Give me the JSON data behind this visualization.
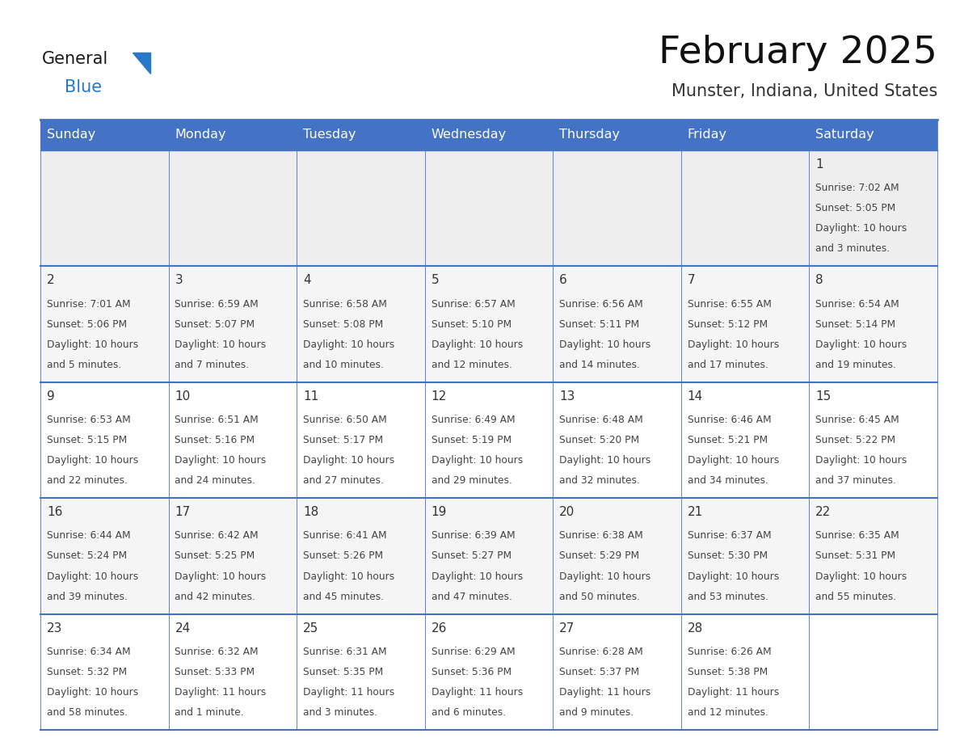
{
  "title": "February 2025",
  "subtitle": "Munster, Indiana, United States",
  "header_bg": "#4472C4",
  "header_text_color": "#FFFFFF",
  "day_names": [
    "Sunday",
    "Monday",
    "Tuesday",
    "Wednesday",
    "Thursday",
    "Friday",
    "Saturday"
  ],
  "cell_bg_row0": "#EEEEEE",
  "cell_bg_row1": "#F5F5F5",
  "cell_bg_row2": "#FFFFFF",
  "cell_bg_row3": "#F5F5F5",
  "cell_bg_row4": "#FFFFFF",
  "cell_border_color": "#4472C4",
  "text_color": "#333333",
  "day_num_color": "#333333",
  "logo_general_color": "#1a1a1a",
  "logo_blue_color": "#2878C8",
  "days": [
    {
      "day": 1,
      "col": 6,
      "row": 0,
      "sunrise": "7:02 AM",
      "sunset": "5:05 PM",
      "daylight_line1": "Daylight: 10 hours",
      "daylight_line2": "and 3 minutes."
    },
    {
      "day": 2,
      "col": 0,
      "row": 1,
      "sunrise": "7:01 AM",
      "sunset": "5:06 PM",
      "daylight_line1": "Daylight: 10 hours",
      "daylight_line2": "and 5 minutes."
    },
    {
      "day": 3,
      "col": 1,
      "row": 1,
      "sunrise": "6:59 AM",
      "sunset": "5:07 PM",
      "daylight_line1": "Daylight: 10 hours",
      "daylight_line2": "and 7 minutes."
    },
    {
      "day": 4,
      "col": 2,
      "row": 1,
      "sunrise": "6:58 AM",
      "sunset": "5:08 PM",
      "daylight_line1": "Daylight: 10 hours",
      "daylight_line2": "and 10 minutes."
    },
    {
      "day": 5,
      "col": 3,
      "row": 1,
      "sunrise": "6:57 AM",
      "sunset": "5:10 PM",
      "daylight_line1": "Daylight: 10 hours",
      "daylight_line2": "and 12 minutes."
    },
    {
      "day": 6,
      "col": 4,
      "row": 1,
      "sunrise": "6:56 AM",
      "sunset": "5:11 PM",
      "daylight_line1": "Daylight: 10 hours",
      "daylight_line2": "and 14 minutes."
    },
    {
      "day": 7,
      "col": 5,
      "row": 1,
      "sunrise": "6:55 AM",
      "sunset": "5:12 PM",
      "daylight_line1": "Daylight: 10 hours",
      "daylight_line2": "and 17 minutes."
    },
    {
      "day": 8,
      "col": 6,
      "row": 1,
      "sunrise": "6:54 AM",
      "sunset": "5:14 PM",
      "daylight_line1": "Daylight: 10 hours",
      "daylight_line2": "and 19 minutes."
    },
    {
      "day": 9,
      "col": 0,
      "row": 2,
      "sunrise": "6:53 AM",
      "sunset": "5:15 PM",
      "daylight_line1": "Daylight: 10 hours",
      "daylight_line2": "and 22 minutes."
    },
    {
      "day": 10,
      "col": 1,
      "row": 2,
      "sunrise": "6:51 AM",
      "sunset": "5:16 PM",
      "daylight_line1": "Daylight: 10 hours",
      "daylight_line2": "and 24 minutes."
    },
    {
      "day": 11,
      "col": 2,
      "row": 2,
      "sunrise": "6:50 AM",
      "sunset": "5:17 PM",
      "daylight_line1": "Daylight: 10 hours",
      "daylight_line2": "and 27 minutes."
    },
    {
      "day": 12,
      "col": 3,
      "row": 2,
      "sunrise": "6:49 AM",
      "sunset": "5:19 PM",
      "daylight_line1": "Daylight: 10 hours",
      "daylight_line2": "and 29 minutes."
    },
    {
      "day": 13,
      "col": 4,
      "row": 2,
      "sunrise": "6:48 AM",
      "sunset": "5:20 PM",
      "daylight_line1": "Daylight: 10 hours",
      "daylight_line2": "and 32 minutes."
    },
    {
      "day": 14,
      "col": 5,
      "row": 2,
      "sunrise": "6:46 AM",
      "sunset": "5:21 PM",
      "daylight_line1": "Daylight: 10 hours",
      "daylight_line2": "and 34 minutes."
    },
    {
      "day": 15,
      "col": 6,
      "row": 2,
      "sunrise": "6:45 AM",
      "sunset": "5:22 PM",
      "daylight_line1": "Daylight: 10 hours",
      "daylight_line2": "and 37 minutes."
    },
    {
      "day": 16,
      "col": 0,
      "row": 3,
      "sunrise": "6:44 AM",
      "sunset": "5:24 PM",
      "daylight_line1": "Daylight: 10 hours",
      "daylight_line2": "and 39 minutes."
    },
    {
      "day": 17,
      "col": 1,
      "row": 3,
      "sunrise": "6:42 AM",
      "sunset": "5:25 PM",
      "daylight_line1": "Daylight: 10 hours",
      "daylight_line2": "and 42 minutes."
    },
    {
      "day": 18,
      "col": 2,
      "row": 3,
      "sunrise": "6:41 AM",
      "sunset": "5:26 PM",
      "daylight_line1": "Daylight: 10 hours",
      "daylight_line2": "and 45 minutes."
    },
    {
      "day": 19,
      "col": 3,
      "row": 3,
      "sunrise": "6:39 AM",
      "sunset": "5:27 PM",
      "daylight_line1": "Daylight: 10 hours",
      "daylight_line2": "and 47 minutes."
    },
    {
      "day": 20,
      "col": 4,
      "row": 3,
      "sunrise": "6:38 AM",
      "sunset": "5:29 PM",
      "daylight_line1": "Daylight: 10 hours",
      "daylight_line2": "and 50 minutes."
    },
    {
      "day": 21,
      "col": 5,
      "row": 3,
      "sunrise": "6:37 AM",
      "sunset": "5:30 PM",
      "daylight_line1": "Daylight: 10 hours",
      "daylight_line2": "and 53 minutes."
    },
    {
      "day": 22,
      "col": 6,
      "row": 3,
      "sunrise": "6:35 AM",
      "sunset": "5:31 PM",
      "daylight_line1": "Daylight: 10 hours",
      "daylight_line2": "and 55 minutes."
    },
    {
      "day": 23,
      "col": 0,
      "row": 4,
      "sunrise": "6:34 AM",
      "sunset": "5:32 PM",
      "daylight_line1": "Daylight: 10 hours",
      "daylight_line2": "and 58 minutes."
    },
    {
      "day": 24,
      "col": 1,
      "row": 4,
      "sunrise": "6:32 AM",
      "sunset": "5:33 PM",
      "daylight_line1": "Daylight: 11 hours",
      "daylight_line2": "and 1 minute."
    },
    {
      "day": 25,
      "col": 2,
      "row": 4,
      "sunrise": "6:31 AM",
      "sunset": "5:35 PM",
      "daylight_line1": "Daylight: 11 hours",
      "daylight_line2": "and 3 minutes."
    },
    {
      "day": 26,
      "col": 3,
      "row": 4,
      "sunrise": "6:29 AM",
      "sunset": "5:36 PM",
      "daylight_line1": "Daylight: 11 hours",
      "daylight_line2": "and 6 minutes."
    },
    {
      "day": 27,
      "col": 4,
      "row": 4,
      "sunrise": "6:28 AM",
      "sunset": "5:37 PM",
      "daylight_line1": "Daylight: 11 hours",
      "daylight_line2": "and 9 minutes."
    },
    {
      "day": 28,
      "col": 5,
      "row": 4,
      "sunrise": "6:26 AM",
      "sunset": "5:38 PM",
      "daylight_line1": "Daylight: 11 hours",
      "daylight_line2": "and 12 minutes."
    }
  ],
  "row_bg_colors": [
    "#EEEEEE",
    "#F5F5F5",
    "#FFFFFF",
    "#F5F5F5",
    "#FFFFFF"
  ]
}
